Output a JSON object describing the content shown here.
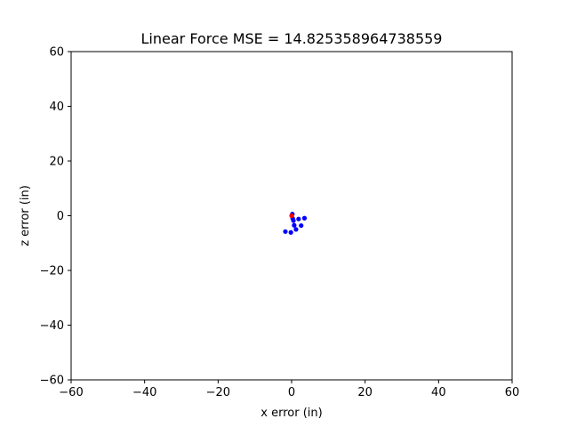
{
  "chart_data": {
    "type": "scatter",
    "title": "Linear Force  MSE = 14.825358964738559",
    "xlabel": "x error (in)",
    "ylabel": "z error (in)",
    "xlim": [
      -60,
      60
    ],
    "ylim": [
      -60,
      60
    ],
    "xticks": [
      -60,
      -40,
      -20,
      0,
      20,
      40,
      60
    ],
    "yticks": [
      -60,
      -40,
      -20,
      0,
      20,
      40,
      60
    ],
    "xtick_labels": [
      "−60",
      "−40",
      "−20",
      "0",
      "20",
      "40",
      "60"
    ],
    "ytick_labels": [
      "−60",
      "−40",
      "−20",
      "0",
      "20",
      "40",
      "60"
    ],
    "grid": false,
    "series": [
      {
        "color": "#0000ff",
        "points": [
          {
            "x": 0.2,
            "y": 0.6
          },
          {
            "x": 0.3,
            "y": -1.0
          },
          {
            "x": 0.5,
            "y": -1.8
          },
          {
            "x": 1.9,
            "y": -1.2
          },
          {
            "x": 3.5,
            "y": -0.9
          },
          {
            "x": 0.7,
            "y": -3.5
          },
          {
            "x": 2.6,
            "y": -3.6
          },
          {
            "x": 1.2,
            "y": -5.0
          },
          {
            "x": -1.7,
            "y": -5.8
          },
          {
            "x": -0.2,
            "y": -6.1
          }
        ]
      },
      {
        "color": "#ff0000",
        "points": [
          {
            "x": 0.0,
            "y": 0.0
          }
        ]
      }
    ]
  }
}
